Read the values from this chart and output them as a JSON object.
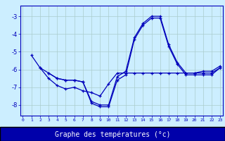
{
  "title": "Graphe des températures (°c)",
  "background_color": "#cceeff",
  "plot_bg_color": "#cceeff",
  "grid_color": "#aacccc",
  "line_color": "#0000bb",
  "xlabel_bg": "#0000aa",
  "xlabel_fg": "#ffffff",
  "x_labels": [
    "0",
    "1",
    "2",
    "3",
    "4",
    "5",
    "6",
    "7",
    "8",
    "9",
    "10",
    "11",
    "12",
    "13",
    "14",
    "15",
    "16",
    "17",
    "18",
    "19",
    "20",
    "21",
    "22",
    "23"
  ],
  "xlim": [
    -0.3,
    23.3
  ],
  "ylim": [
    -8.6,
    -2.4
  ],
  "yticks": [
    -8,
    -7,
    -6,
    -5,
    -4,
    -3
  ],
  "series": [
    [
      null,
      -5.2,
      -5.9,
      -6.2,
      -6.5,
      -6.6,
      -6.6,
      -6.7,
      -7.9,
      -8.1,
      -8.1,
      -6.6,
      -6.3,
      -4.3,
      -3.5,
      -3.1,
      -3.1,
      -4.7,
      -5.7,
      -6.3,
      -6.3,
      -6.3,
      -6.3,
      -5.9
    ],
    [
      null,
      null,
      -5.9,
      -6.5,
      -6.9,
      -7.1,
      -7.0,
      -7.2,
      -7.3,
      -7.5,
      -6.8,
      -6.2,
      -6.2,
      -6.2,
      -6.2,
      -6.2,
      -6.2,
      -6.2,
      -6.2,
      -6.2,
      -6.2,
      -6.2,
      -6.2,
      -5.9
    ],
    [
      null,
      null,
      null,
      -6.2,
      -6.5,
      -6.6,
      -6.6,
      -6.7,
      -7.8,
      -8.0,
      -8.0,
      -6.4,
      -6.1,
      -4.2,
      -3.4,
      -3.0,
      -3.0,
      -4.6,
      -5.6,
      -6.2,
      -6.2,
      -6.1,
      -6.1,
      -5.8
    ]
  ]
}
